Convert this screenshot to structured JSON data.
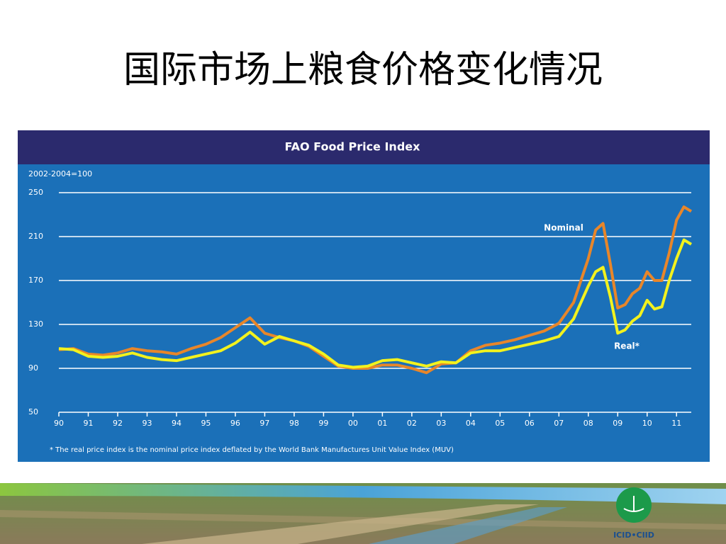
{
  "slide_title": "国际市场上粮食价格变化情况",
  "logo_text": "ICID•CIID",
  "chart_data": {
    "type": "line",
    "title": "FAO Food Price Index",
    "subtitle": "2002-2004=100",
    "footnote": "* The real price index is the nominal price index deflated by the World Bank Manufactures Unit Value Index (MUV)",
    "x": [
      1990,
      1990.5,
      1991,
      1991.5,
      1992,
      1992.5,
      1993,
      1993.5,
      1994,
      1994.5,
      1995,
      1995.5,
      1996,
      1996.5,
      1997,
      1997.5,
      1998,
      1998.5,
      1999,
      1999.5,
      2000,
      2000.5,
      2001,
      2001.5,
      2002,
      2002.5,
      2003,
      2003.5,
      2004,
      2004.5,
      2005,
      2005.5,
      2006,
      2006.5,
      2007,
      2007.5,
      2008,
      2008.25,
      2008.5,
      2008.75,
      2009,
      2009.25,
      2009.5,
      2009.75,
      2010,
      2010.25,
      2010.5,
      2010.75,
      2011,
      2011.25,
      2011.5
    ],
    "series": [
      {
        "name": "Nominal",
        "color": "#e8862a",
        "values": [
          107,
          108,
          103,
          102,
          104,
          108,
          106,
          105,
          103,
          108,
          112,
          118,
          127,
          136,
          122,
          118,
          115,
          110,
          101,
          92,
          90,
          90,
          93,
          93,
          90,
          86,
          94,
          95,
          106,
          111,
          113,
          116,
          120,
          124,
          131,
          150,
          190,
          216,
          222,
          185,
          145,
          148,
          158,
          163,
          178,
          170,
          170,
          195,
          225,
          237,
          233
        ]
      },
      {
        "name": "Real*",
        "color": "#f2f21e",
        "values": [
          108,
          107,
          101,
          100,
          101,
          104,
          100,
          98,
          97,
          100,
          103,
          106,
          113,
          123,
          112,
          119,
          115,
          111,
          103,
          93,
          91,
          92,
          97,
          98,
          95,
          92,
          96,
          95,
          104,
          106,
          106,
          109,
          112,
          115,
          119,
          135,
          165,
          178,
          182,
          155,
          122,
          125,
          133,
          138,
          152,
          144,
          146,
          170,
          190,
          207,
          203
        ]
      }
    ],
    "xlim": [
      1990,
      2011.5
    ],
    "xticks": [
      {
        "value": 1990,
        "label": "90"
      },
      {
        "value": 1991,
        "label": "91"
      },
      {
        "value": 1992,
        "label": "92"
      },
      {
        "value": 1993,
        "label": "93"
      },
      {
        "value": 1994,
        "label": "94"
      },
      {
        "value": 1995,
        "label": "95"
      },
      {
        "value": 1996,
        "label": "96"
      },
      {
        "value": 1997,
        "label": "97"
      },
      {
        "value": 1998,
        "label": "98"
      },
      {
        "value": 1999,
        "label": "99"
      },
      {
        "value": 2000,
        "label": "00"
      },
      {
        "value": 2001,
        "label": "01"
      },
      {
        "value": 2002,
        "label": "02"
      },
      {
        "value": 2003,
        "label": "03"
      },
      {
        "value": 2004,
        "label": "04"
      },
      {
        "value": 2005,
        "label": "05"
      },
      {
        "value": 2006,
        "label": "06"
      },
      {
        "value": 2007,
        "label": "07"
      },
      {
        "value": 2008,
        "label": "08"
      },
      {
        "value": 2009,
        "label": "09"
      },
      {
        "value": 2010,
        "label": "10"
      },
      {
        "value": 2011,
        "label": "11"
      }
    ],
    "ylim": [
      50,
      250
    ],
    "yticks": [
      50,
      90,
      130,
      170,
      210,
      250
    ],
    "grid": true
  }
}
